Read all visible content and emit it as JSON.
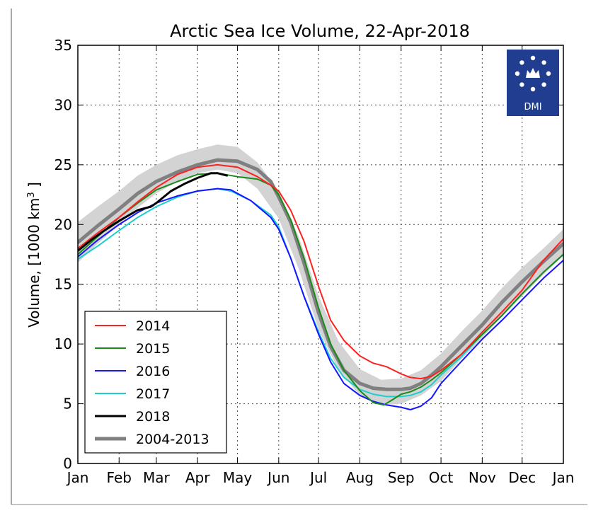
{
  "chart_data": {
    "type": "line",
    "title": "Arctic Sea Ice Volume, 22-Apr-2018",
    "xlabel": "",
    "ylabel": "Volume, [1000 km³ ]",
    "xlim": [
      0,
      365
    ],
    "ylim": [
      0,
      35
    ],
    "y_ticks": [
      0,
      5,
      10,
      15,
      20,
      25,
      30,
      35
    ],
    "x_ticks": [
      {
        "label": "Jan",
        "day": 0
      },
      {
        "label": "Feb",
        "day": 31
      },
      {
        "label": "Mar",
        "day": 59
      },
      {
        "label": "Apr",
        "day": 90
      },
      {
        "label": "May",
        "day": 120
      },
      {
        "label": "Jun",
        "day": 151
      },
      {
        "label": "Jul",
        "day": 181
      },
      {
        "label": "Aug",
        "day": 212
      },
      {
        "label": "Sep",
        "day": 243
      },
      {
        "label": "Oct",
        "day": 273
      },
      {
        "label": "Nov",
        "day": 304
      },
      {
        "label": "Dec",
        "day": 334
      },
      {
        "label": "Jan",
        "day": 365
      }
    ],
    "grid": true,
    "legend_position": "lower-left",
    "logo_text": "DMI",
    "band": {
      "name": "",
      "x": [
        0,
        15,
        31,
        45,
        59,
        75,
        90,
        105,
        120,
        135,
        151,
        166,
        181,
        196,
        212,
        228,
        243,
        258,
        273,
        288,
        304,
        319,
        334,
        350,
        365
      ],
      "lower": [
        16.8,
        18.4,
        20.0,
        21.4,
        22.6,
        23.6,
        24.3,
        24.6,
        24.3,
        23.0,
        20.5,
        16.3,
        11.2,
        7.8,
        5.7,
        4.9,
        5.0,
        5.7,
        6.9,
        8.7,
        10.5,
        12.3,
        14.0,
        15.8,
        17.4
      ],
      "upper": [
        20.2,
        21.5,
        22.8,
        24.1,
        25.0,
        25.8,
        26.3,
        26.7,
        26.5,
        25.2,
        22.8,
        19.0,
        14.0,
        10.2,
        7.9,
        7.0,
        7.1,
        7.8,
        9.2,
        11.0,
        12.8,
        14.7,
        16.4,
        18.0,
        19.6
      ]
    },
    "series": [
      {
        "name": "2014",
        "color": "#ff2020",
        "width": 2,
        "x": [
          0,
          15,
          31,
          45,
          59,
          75,
          90,
          105,
          120,
          135,
          145,
          151,
          160,
          170,
          181,
          190,
          200,
          212,
          222,
          232,
          243,
          250,
          258,
          266,
          273,
          288,
          304,
          319,
          334,
          350,
          365
        ],
        "y": [
          18.0,
          19.3,
          20.6,
          21.9,
          23.1,
          24.2,
          24.8,
          25.0,
          24.8,
          24.0,
          23.3,
          22.8,
          21.2,
          18.6,
          14.8,
          12.0,
          10.3,
          9.0,
          8.4,
          8.1,
          7.5,
          7.2,
          7.1,
          7.3,
          7.8,
          9.1,
          11.0,
          12.7,
          14.5,
          17.0,
          18.8
        ]
      },
      {
        "name": "2015",
        "color": "#1a8a1a",
        "width": 2,
        "x": [
          0,
          15,
          31,
          45,
          59,
          75,
          90,
          105,
          120,
          135,
          145,
          151,
          160,
          170,
          181,
          190,
          200,
          212,
          222,
          230,
          236,
          243,
          250,
          258,
          266,
          273,
          288,
          304,
          319,
          334,
          350,
          365
        ],
        "y": [
          17.5,
          19.0,
          20.6,
          21.8,
          22.9,
          23.6,
          24.2,
          24.3,
          24.0,
          23.8,
          23.3,
          22.5,
          20.4,
          17.2,
          13.0,
          10.0,
          7.8,
          6.1,
          5.1,
          4.9,
          5.3,
          5.8,
          6.0,
          6.4,
          7.0,
          7.6,
          9.1,
          10.8,
          12.4,
          14.2,
          16.0,
          17.5
        ]
      },
      {
        "name": "2016",
        "color": "#1515ff",
        "width": 2,
        "x": [
          0,
          15,
          31,
          45,
          59,
          75,
          90,
          105,
          115,
          130,
          145,
          151,
          160,
          170,
          181,
          190,
          200,
          212,
          222,
          232,
          243,
          250,
          258,
          266,
          273,
          288,
          304,
          319,
          334,
          350,
          365
        ],
        "y": [
          17.3,
          18.7,
          20.0,
          21.0,
          21.8,
          22.4,
          22.8,
          23.0,
          22.9,
          22.0,
          20.6,
          19.6,
          17.2,
          14.0,
          10.8,
          8.5,
          6.7,
          5.7,
          5.2,
          4.9,
          4.7,
          4.5,
          4.8,
          5.5,
          6.7,
          8.5,
          10.4,
          12.0,
          13.7,
          15.5,
          17.0
        ]
      },
      {
        "name": "2017",
        "color": "#1ecece",
        "width": 2,
        "x": [
          0,
          15,
          31,
          45,
          59,
          75,
          90,
          105,
          115,
          130,
          145,
          151,
          160,
          170,
          181,
          190,
          200,
          212,
          222,
          232,
          243,
          250,
          258,
          266,
          273,
          288,
          304,
          319,
          334,
          350,
          365
        ],
        "y": [
          17.1,
          18.2,
          19.5,
          20.6,
          21.5,
          22.3,
          22.8,
          23.0,
          22.8,
          22.0,
          20.8,
          19.8,
          17.2,
          14.0,
          11.0,
          8.8,
          7.2,
          6.2,
          5.8,
          5.6,
          5.6,
          5.7,
          6.0,
          6.6,
          7.4,
          8.9,
          10.8,
          12.4,
          14.2,
          16.0,
          17.5
        ]
      },
      {
        "name": "2018",
        "color": "#000000",
        "width": 3,
        "x": [
          0,
          10,
          20,
          31,
          45,
          55,
          59,
          70,
          80,
          90,
          100,
          105,
          112
        ],
        "y": [
          17.8,
          18.7,
          19.5,
          20.3,
          21.2,
          21.5,
          21.8,
          22.8,
          23.4,
          23.9,
          24.3,
          24.3,
          24.1
        ]
      },
      {
        "name": "2004-2013",
        "color": "#808080",
        "width": 5,
        "x": [
          0,
          15,
          31,
          45,
          59,
          75,
          90,
          105,
          120,
          135,
          145,
          151,
          160,
          170,
          181,
          190,
          200,
          212,
          222,
          232,
          243,
          250,
          258,
          266,
          273,
          288,
          304,
          319,
          334,
          350,
          365
        ],
        "y": [
          18.5,
          19.9,
          21.3,
          22.6,
          23.6,
          24.4,
          25.0,
          25.4,
          25.3,
          24.6,
          23.6,
          22.3,
          20.2,
          16.8,
          12.6,
          9.8,
          7.8,
          6.7,
          6.3,
          6.2,
          6.2,
          6.3,
          6.7,
          7.4,
          8.1,
          9.8,
          11.6,
          13.5,
          15.2,
          16.9,
          18.4
        ]
      }
    ]
  }
}
